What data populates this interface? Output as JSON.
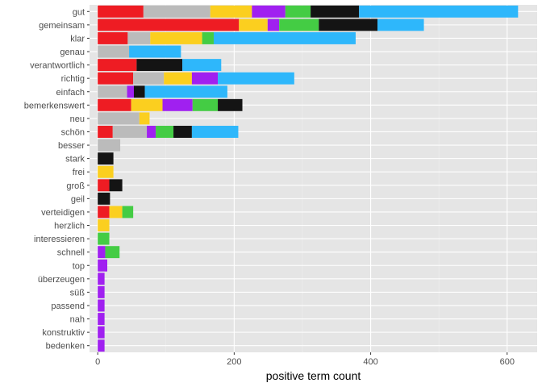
{
  "chart_data": {
    "type": "bar",
    "orientation": "horizontal",
    "stacked": true,
    "title": "",
    "xlabel": "positive term count",
    "ylabel": "",
    "xlim": [
      -12,
      644
    ],
    "x_ticks": [
      0,
      200,
      400,
      600
    ],
    "grid": true,
    "legend": "none",
    "colors": {
      "panel_bg": "#e5e5e5",
      "grid_major": "#ffffff",
      "grid_minor": "#f0f0f0",
      "segments": [
        "#ee1c23",
        "#bbbbbb",
        "#fbcf1f",
        "#a020f0",
        "#44cc44",
        "#141414",
        "#2eb7fb"
      ]
    },
    "categories": [
      "gut",
      "gemeinsam",
      "klar",
      "genau",
      "verantwortlich",
      "richtig",
      "einfach",
      "bemerkenswert",
      "neu",
      "schön",
      "besser",
      "stark",
      "frei",
      "groß",
      "geil",
      "verteidigen",
      "herzlich",
      "interessieren",
      "schnell",
      "top",
      "überzeugen",
      "süß",
      "passend",
      "nah",
      "konstruktiv",
      "bedenken"
    ],
    "series": [
      {
        "values": [
          67,
          207,
          44,
          0,
          57,
          52,
          0,
          49,
          0,
          22,
          0,
          0,
          0,
          17,
          0,
          17,
          0,
          0,
          0,
          0,
          0,
          0,
          0,
          0,
          0,
          0
        ]
      },
      {
        "values": [
          98,
          0,
          33,
          46,
          0,
          45,
          43,
          0,
          61,
          50,
          33,
          0,
          0,
          0,
          0,
          0,
          0,
          0,
          0,
          0,
          0,
          0,
          0,
          0,
          0,
          0
        ]
      },
      {
        "values": [
          61,
          42,
          76,
          0,
          0,
          41,
          0,
          46,
          15,
          0,
          0,
          0,
          23,
          0,
          0,
          19,
          17,
          0,
          0,
          0,
          0,
          0,
          0,
          0,
          0,
          0
        ]
      },
      {
        "values": [
          49,
          17,
          0,
          0,
          0,
          38,
          10,
          44,
          0,
          13,
          0,
          0,
          0,
          0,
          0,
          0,
          0,
          0,
          11,
          14,
          10,
          10,
          10,
          10,
          10,
          10
        ]
      },
      {
        "values": [
          37,
          58,
          17,
          0,
          0,
          0,
          0,
          37,
          0,
          26,
          0,
          0,
          0,
          0,
          0,
          16,
          0,
          17,
          21,
          0,
          0,
          0,
          0,
          0,
          0,
          0
        ]
      },
      {
        "values": [
          71,
          86,
          0,
          0,
          67,
          0,
          16,
          36,
          0,
          27,
          0,
          23,
          0,
          19,
          18,
          0,
          0,
          0,
          0,
          0,
          0,
          0,
          0,
          0,
          0,
          0
        ]
      },
      {
        "values": [
          233,
          68,
          208,
          76,
          57,
          112,
          121,
          0,
          0,
          68,
          0,
          0,
          0,
          0,
          0,
          0,
          0,
          0,
          0,
          0,
          0,
          0,
          0,
          0,
          0,
          0
        ]
      }
    ]
  }
}
